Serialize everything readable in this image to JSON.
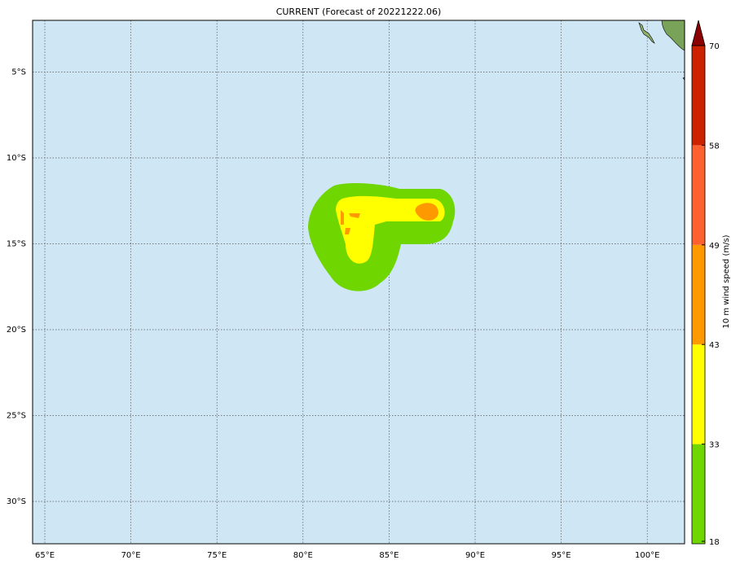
{
  "title": "CURRENT (Forecast of 20221222.06)",
  "lon_labels": [
    "65°E",
    "70°E",
    "75°E",
    "80°E",
    "85°E",
    "90°E",
    "95°E",
    "100°E"
  ],
  "lat_labels": [
    "5°S",
    "10°S",
    "15°S",
    "20°S",
    "25°S",
    "30°S"
  ],
  "colorbar": {
    "label": "10 m wind speed (m/s)",
    "ticks": [
      18,
      33,
      43,
      49,
      58,
      70
    ],
    "colors": [
      "#6fd600",
      "#ffff00",
      "#ff9900",
      "#ff6030",
      "#cc2200"
    ],
    "extend_color": "#8b0000"
  }
}
